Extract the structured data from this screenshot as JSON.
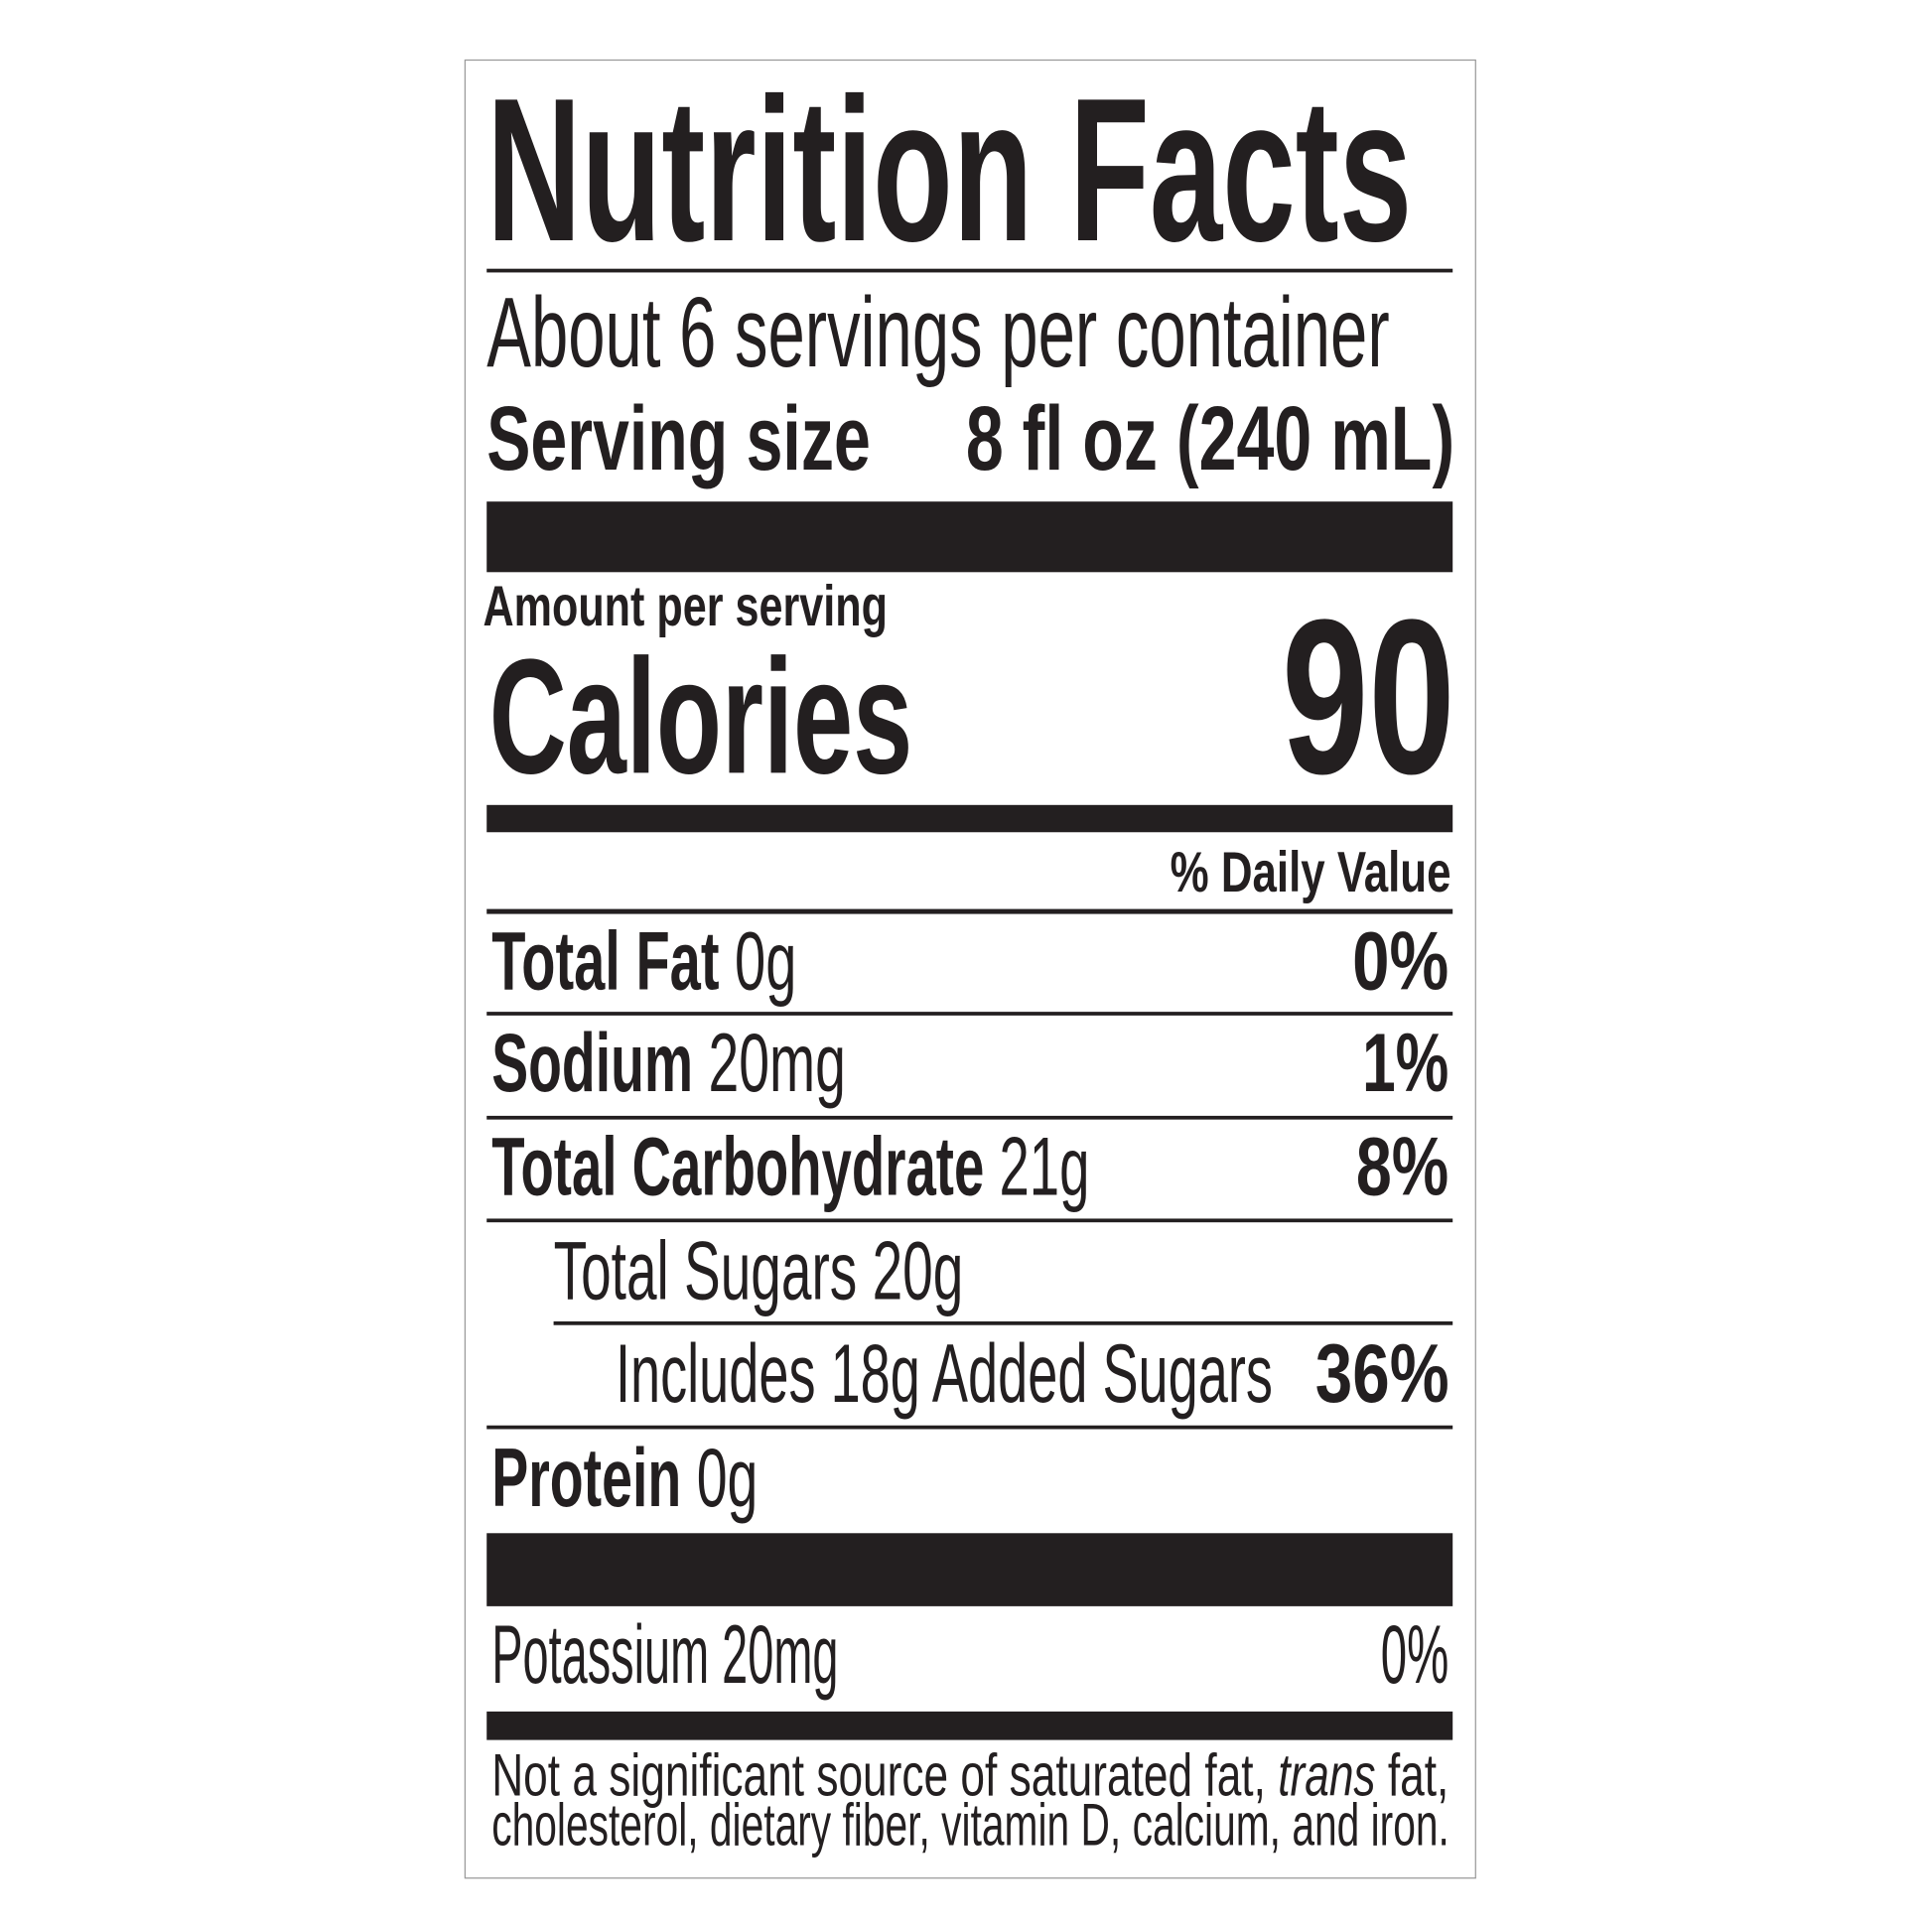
{
  "title": "Nutrition Facts",
  "servings_per_container": "About 6 servings per container",
  "serving_size": {
    "label": "Serving size",
    "value": "8 fl oz (240 mL)"
  },
  "amount_per_serving": "Amount per serving",
  "calories": {
    "label": "Calories",
    "value": "90"
  },
  "daily_value_header": "% Daily Value",
  "nutrients": [
    {
      "name": "Total Fat",
      "amount": "0g",
      "dv": "0%"
    },
    {
      "name": "Sodium",
      "amount": "20mg",
      "dv": "1%"
    },
    {
      "name": "Total Carbohydrate",
      "amount": "21g",
      "dv": "8%"
    },
    {
      "name": "Total Sugars 20g"
    },
    {
      "name": "Includes 18g Added Sugars",
      "dv": "36%"
    },
    {
      "name": "Protein",
      "amount": "0g"
    }
  ],
  "vitamins": [
    {
      "name": "Potassium 20mg",
      "dv": "0%"
    }
  ],
  "footnote": {
    "line1_a": "Not a significant source of saturated fat, ",
    "line1_italic": "trans",
    "line1_b": " fat,",
    "line2": "cholesterol, dietary fiber, vitamin D, calcium, and iron."
  }
}
